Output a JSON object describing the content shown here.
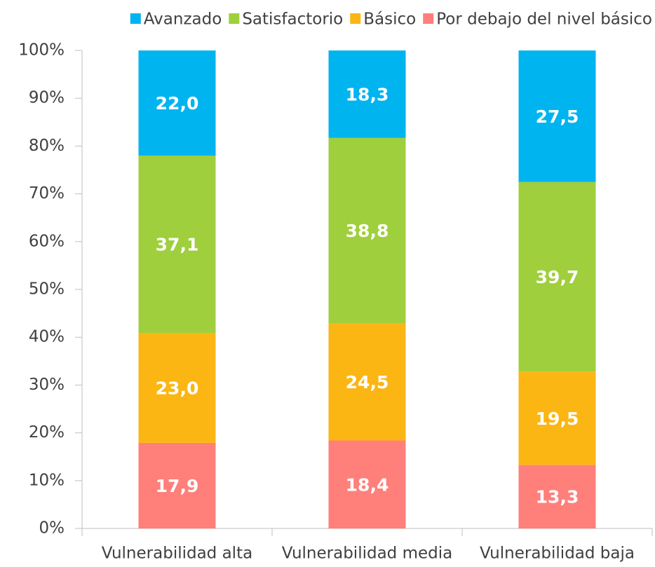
{
  "chart_data": {
    "type": "stacked_bar",
    "categories": [
      "Vulnerabilidad alta",
      "Vulnerabilidad media",
      "Vulnerabilidad baja"
    ],
    "series": [
      {
        "name": "Avanzado",
        "color": "#00b4f0",
        "values": [
          22.0,
          18.3,
          27.5
        ],
        "value_labels": [
          "22,0",
          "18,3",
          "27,5"
        ]
      },
      {
        "name": "Satisfactorio",
        "color": "#9fcf3c",
        "values": [
          37.1,
          38.8,
          39.7
        ],
        "value_labels": [
          "37,1",
          "38,8",
          "39,7"
        ]
      },
      {
        "name": "Básico",
        "color": "#fbb614",
        "values": [
          23.0,
          24.5,
          19.5
        ],
        "value_labels": [
          "23,0",
          "24,5",
          "19,5"
        ]
      },
      {
        "name": "Por debajo del nivel básico",
        "color": "#ff7f7b",
        "values": [
          17.9,
          18.4,
          13.3
        ],
        "value_labels": [
          "17,9",
          "18,4",
          "13,3"
        ]
      }
    ],
    "ylim": [
      0,
      100
    ],
    "yticks": [
      {
        "value": 0,
        "label": "0%"
      },
      {
        "value": 10,
        "label": "10%"
      },
      {
        "value": 20,
        "label": "20%"
      },
      {
        "value": 30,
        "label": "30%"
      },
      {
        "value": 40,
        "label": "40%"
      },
      {
        "value": 50,
        "label": "50%"
      },
      {
        "value": 60,
        "label": "60%"
      },
      {
        "value": 70,
        "label": "70%"
      },
      {
        "value": 80,
        "label": "80%"
      },
      {
        "value": 90,
        "label": "90%"
      },
      {
        "value": 100,
        "label": "100%"
      }
    ],
    "legend": "top"
  }
}
